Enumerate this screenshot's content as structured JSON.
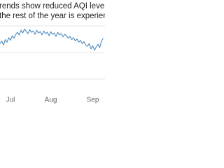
{
  "chart_data": {
    "type": "line",
    "subtitle_lines": [
      "rends show reduced AQI levels in the sum",
      "the rest of the year is experiencing increa"
    ],
    "categories": [
      null,
      null,
      null,
      null,
      null,
      null,
      "Jul",
      null,
      null,
      null,
      null,
      null,
      null,
      null,
      null,
      null,
      null,
      null,
      null,
      null,
      null,
      null,
      null,
      null,
      null,
      null,
      null,
      null,
      null,
      "Aug",
      null,
      null,
      null,
      null,
      null,
      null,
      null,
      null,
      null,
      null,
      null,
      null,
      null,
      null,
      null,
      null,
      null,
      null,
      null,
      null,
      null,
      null,
      null,
      "Sep",
      null,
      null,
      null,
      null,
      null,
      null
    ],
    "series": [
      {
        "name": "AQI",
        "color": "#4f8bbd",
        "values": [
          66,
          70,
          64,
          72,
          68,
          75,
          71,
          78,
          74,
          80,
          83,
          79,
          86,
          82,
          88,
          84,
          81,
          87,
          83,
          85,
          80,
          86,
          82,
          84,
          79,
          85,
          81,
          83,
          78,
          84,
          80,
          82,
          77,
          83,
          79,
          81,
          76,
          80,
          78,
          74,
          77,
          72,
          75,
          70,
          73,
          68,
          71,
          66,
          69,
          64,
          62,
          66,
          58,
          63,
          56,
          61,
          65,
          60,
          70,
          74
        ]
      }
    ],
    "ylim": [
      0,
      100
    ]
  }
}
